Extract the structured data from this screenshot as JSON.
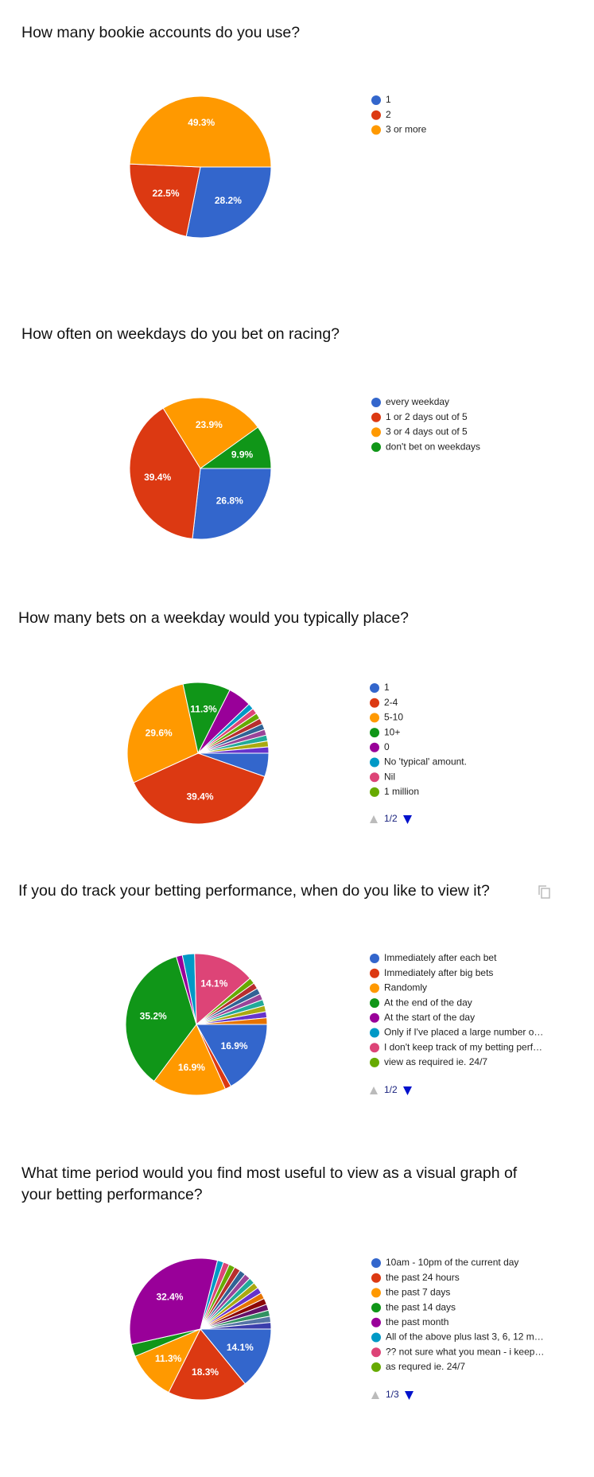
{
  "chart_data": [
    {
      "type": "pie",
      "title": "How many bookie accounts do you use?",
      "categories": [
        "1",
        "2",
        "3 or more"
      ],
      "values": [
        28.2,
        22.5,
        49.3
      ],
      "value_labels": [
        "28.2%",
        "22.5%",
        "49.3%"
      ],
      "colors": [
        "#3366cc",
        "#dc3912",
        "#ff9900"
      ]
    },
    {
      "type": "pie",
      "title": "How often on weekdays do you bet on racing?",
      "categories": [
        "every weekday",
        "1 or 2 days out of 5",
        "3 or 4 days out of 5",
        "don't bet on weekdays"
      ],
      "values": [
        26.8,
        39.4,
        23.9,
        9.9
      ],
      "value_labels": [
        "26.8%",
        "39.4%",
        "23.9%",
        "9.9%"
      ],
      "colors": [
        "#3366cc",
        "#dc3912",
        "#ff9900",
        "#109618"
      ]
    },
    {
      "type": "pie",
      "title": "How many bets on a weekday would you typically place?",
      "categories": [
        "1",
        "2-4",
        "5-10",
        "10+",
        "0",
        "No 'typical' amount.",
        "Nil",
        "1 million",
        null,
        null,
        null,
        null,
        null,
        null
      ],
      "values": [
        5.6,
        39.4,
        29.6,
        11.3,
        5.6,
        1.4,
        1.4,
        1.4,
        1.4,
        1.4,
        1.4,
        1.4,
        1.4,
        1.5
      ],
      "value_labels": [
        null,
        "39.4%",
        "29.6%",
        "11.3%",
        null,
        null,
        null,
        null,
        null,
        null,
        null,
        null,
        null,
        null
      ],
      "colors": [
        "#3366cc",
        "#dc3912",
        "#ff9900",
        "#109618",
        "#990099",
        "#0099c6",
        "#dd4477",
        "#66aa00",
        "#b82e2e",
        "#316395",
        "#994499",
        "#22aa99",
        "#aaaa11",
        "#6633cc"
      ],
      "legend_page": "1/2"
    },
    {
      "type": "pie",
      "title": "If you do track your betting performance, when do you like to view it?",
      "categories": [
        "Immediately after each bet",
        "Immediately after big bets",
        "Randomly",
        "At the end of the day",
        "At the start of the day",
        "Only if I've placed a large number o…",
        "I don't keep track of my betting perf…",
        "view as required ie. 24/7",
        null,
        null,
        null,
        null,
        null,
        null,
        null
      ],
      "values": [
        16.9,
        1.4,
        16.9,
        35.2,
        1.4,
        2.8,
        14.1,
        1.4,
        1.4,
        1.4,
        1.4,
        1.4,
        1.4,
        1.4,
        1.5
      ],
      "value_labels": [
        "16.9%",
        null,
        "16.9%",
        "35.2%",
        null,
        null,
        "14.1%",
        null,
        null,
        null,
        null,
        null,
        null,
        null,
        null
      ],
      "colors": [
        "#3366cc",
        "#dc3912",
        "#ff9900",
        "#109618",
        "#990099",
        "#0099c6",
        "#dd4477",
        "#66aa00",
        "#b82e2e",
        "#316395",
        "#994499",
        "#22aa99",
        "#aaaa11",
        "#6633cc",
        "#e67300"
      ],
      "legend_page": "1/2"
    },
    {
      "type": "pie",
      "title": "What time period would you find most useful to view as a visual graph of your betting performance?",
      "categories": [
        "10am - 10pm of the current day",
        "the past 24 hours",
        "the past 7 days",
        "the past 14 days",
        "the past month",
        "All of the above plus last 3, 6, 12 m…",
        "?? not sure what you mean - i keep…",
        "as requred ie. 24/7",
        null,
        null,
        null,
        null,
        null,
        null,
        null,
        null,
        null,
        null,
        null,
        null
      ],
      "values": [
        14.1,
        18.3,
        11.3,
        2.8,
        32.4,
        1.4,
        1.4,
        1.4,
        1.4,
        1.4,
        1.4,
        1.4,
        1.4,
        1.4,
        1.4,
        1.4,
        1.4,
        1.4,
        1.4,
        1.5
      ],
      "value_labels": [
        "14.1%",
        "18.3%",
        "11.3%",
        null,
        "32.4%",
        null,
        null,
        null,
        null,
        null,
        null,
        null,
        null,
        null,
        null,
        null,
        null,
        null,
        null,
        null
      ],
      "colors": [
        "#3366cc",
        "#dc3912",
        "#ff9900",
        "#109618",
        "#990099",
        "#0099c6",
        "#dd4477",
        "#66aa00",
        "#b82e2e",
        "#316395",
        "#994499",
        "#22aa99",
        "#aaaa11",
        "#6633cc",
        "#e67300",
        "#8b0707",
        "#651067",
        "#329262",
        "#5574a6",
        "#3b3eac"
      ],
      "legend_page": "1/3"
    }
  ]
}
